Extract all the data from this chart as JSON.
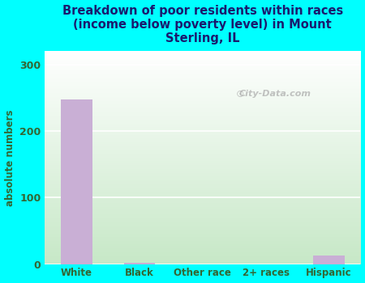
{
  "title": "Breakdown of poor residents within races\n(income below poverty level) in Mount\nSterling, IL",
  "categories": [
    "White",
    "Black",
    "Other race",
    "2+ races",
    "Hispanic"
  ],
  "values": [
    248,
    2,
    0,
    0,
    13
  ],
  "bar_color": "#c9afd5",
  "ylabel": "absolute numbers",
  "ylim": [
    0,
    320
  ],
  "yticks": [
    0,
    100,
    200,
    300
  ],
  "background_color": "#00ffff",
  "title_color": "#1a1a6e",
  "axis_label_color": "#336633",
  "tick_label_color": "#336633",
  "grid_color": "#ffffff",
  "watermark": "City-Data.com",
  "fig_width": 4.5,
  "fig_height": 3.5
}
